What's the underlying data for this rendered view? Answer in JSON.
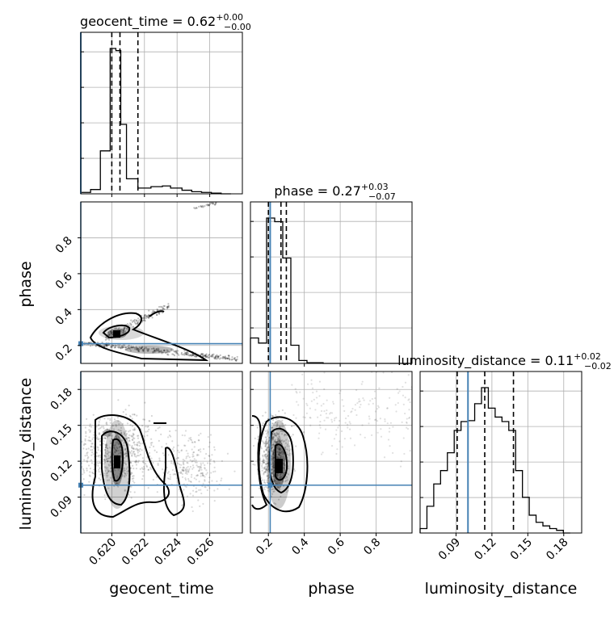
{
  "chart_data": {
    "type": "corner",
    "parameters": [
      "geocent_time",
      "phase",
      "luminosity_distance"
    ],
    "truth_color": "#4682b4",
    "truths": {
      "geocent_time": 0.6181,
      "phase": 0.21,
      "luminosity_distance": 0.1
    },
    "grid": true,
    "panels": {
      "geocent_time": {
        "title": "geocent_time = 0.62",
        "title_plus": "+0.00",
        "title_minus": "−0.00",
        "xlim": [
          0.6181,
          0.628
        ],
        "xticks": [
          0.62,
          0.622,
          0.624,
          0.626
        ],
        "xtick_labels": [
          "0.620",
          "0.622",
          "0.624",
          "0.626"
        ],
        "xlabel": "geocent_time",
        "quantiles": [
          0.62,
          0.6205,
          0.6216
        ],
        "hist_edges": [
          0.6181,
          0.6187,
          0.6193,
          0.6199,
          0.62025,
          0.62055,
          0.6209,
          0.6216,
          0.6224,
          0.6231,
          0.6236,
          0.6243,
          0.6249,
          0.6255,
          0.6261,
          0.6267,
          0.6273
        ],
        "hist_counts": [
          2,
          6,
          60,
          203,
          200,
          97,
          21,
          8,
          10,
          11,
          8,
          5,
          3,
          2,
          1,
          0
        ]
      },
      "phase": {
        "title": "phase = 0.27",
        "title_plus": "+0.03",
        "title_minus": "−0.07",
        "xlim": [
          0.1,
          1.0
        ],
        "xticks": [
          0.2,
          0.4,
          0.6,
          0.8
        ],
        "xtick_labels": [
          "0.2",
          "0.4",
          "0.6",
          "0.8"
        ],
        "xlabel": "phase",
        "yticks": [
          0.2,
          0.4,
          0.6,
          0.8
        ],
        "ytick_labels": [
          "0.2",
          "0.4",
          "0.6",
          "0.8"
        ],
        "ylabel": "phase",
        "quantiles": [
          0.2,
          0.27,
          0.3
        ],
        "hist_edges": [
          0.1,
          0.145,
          0.19,
          0.235,
          0.28,
          0.325,
          0.37,
          0.415,
          0.46,
          0.505,
          0.55,
          0.595,
          0.64,
          0.685,
          0.73,
          0.775,
          0.82,
          0.865,
          0.91,
          0.955,
          1.0
        ],
        "hist_counts": [
          35,
          28,
          200,
          195,
          145,
          25,
          4,
          1,
          1,
          0,
          0,
          0,
          0,
          0,
          0,
          0,
          0,
          0,
          0,
          0
        ]
      },
      "luminosity_distance": {
        "title": "luminosity_distance = 0.11",
        "title_plus": "+0.02",
        "title_minus": "−0.02",
        "xlim": [
          0.06,
          0.195
        ],
        "xticks": [
          0.09,
          0.12,
          0.15,
          0.18
        ],
        "xtick_labels": [
          "0.09",
          "0.12",
          "0.15",
          "0.18"
        ],
        "xlabel": "luminosity_distance",
        "yticks": [
          0.09,
          0.12,
          0.15,
          0.18
        ],
        "ytick_labels": [
          "0.09",
          "0.12",
          "0.15",
          "0.18"
        ],
        "ylabel": "luminosity_distance",
        "quantiles": [
          0.091,
          0.114,
          0.138
        ],
        "hist_edges": [
          0.06,
          0.0657,
          0.0714,
          0.0771,
          0.0828,
          0.0885,
          0.0942,
          0.0999,
          0.1056,
          0.1113,
          0.117,
          0.1227,
          0.1284,
          0.1341,
          0.1398,
          0.1455,
          0.1512,
          0.1569,
          0.1626,
          0.1683,
          0.174,
          0.1797,
          0.1854
        ],
        "hist_counts": [
          5,
          30,
          55,
          70,
          90,
          115,
          125,
          126,
          145,
          163,
          140,
          130,
          125,
          115,
          70,
          40,
          20,
          12,
          8,
          5,
          3,
          0
        ]
      }
    }
  }
}
